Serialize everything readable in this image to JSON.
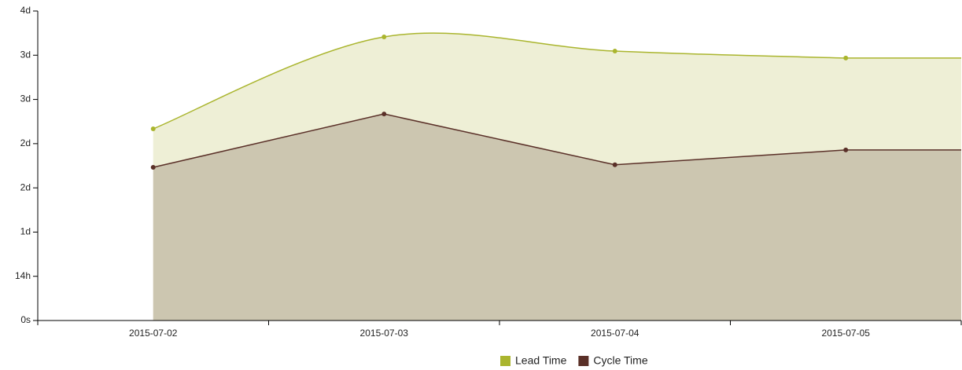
{
  "chart_data": {
    "type": "area",
    "categories": [
      "2015-07-02",
      "2015-07-03",
      "2015-07-04",
      "2015-07-05"
    ],
    "series": [
      {
        "name": "Lead Time",
        "color": "#aab52e",
        "fill": "#eeefd6",
        "curve": "smooth",
        "values": [
          60.7,
          89.8,
          85.3,
          83.1
        ]
      },
      {
        "name": "Cycle Time",
        "color": "#5a3028",
        "fill": "#ccc6b0",
        "curve": "linear",
        "values": [
          48.5,
          65.4,
          49.3,
          54.0
        ]
      }
    ],
    "ylim": [
      0,
      98
    ],
    "yticks": [
      {
        "value": 0,
        "label": "0s"
      },
      {
        "value": 14,
        "label": "14h"
      },
      {
        "value": 28,
        "label": "1d"
      },
      {
        "value": 42,
        "label": "2d"
      },
      {
        "value": 56,
        "label": "2d"
      },
      {
        "value": 70,
        "label": "3d"
      },
      {
        "value": 84,
        "label": "3d"
      },
      {
        "value": 98,
        "label": "4d"
      }
    ],
    "legend": "bottom"
  }
}
